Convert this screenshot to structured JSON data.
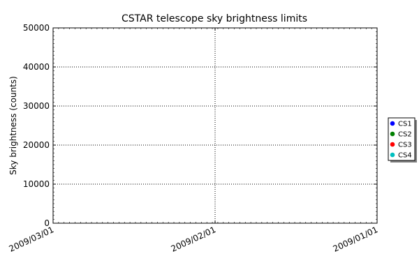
{
  "chart_data": {
    "type": "scatter",
    "title": "CSTAR telescope sky brightness limits",
    "xlabel": "",
    "ylabel": "Sky brightness (counts)",
    "x_ticks": [
      "2009/03/01",
      "2009/02/01",
      "2009/01/01"
    ],
    "y_ticks": [
      0,
      10000,
      20000,
      30000,
      40000,
      50000
    ],
    "ylim": [
      0,
      50000
    ],
    "grid": true,
    "legend_position": "right",
    "series": [
      {
        "name": "CS1",
        "color": "#0000ff",
        "points": []
      },
      {
        "name": "CS2",
        "color": "#008000",
        "points": []
      },
      {
        "name": "CS3",
        "color": "#ff0000",
        "points": []
      },
      {
        "name": "CS4",
        "color": "#00bfbf",
        "points": []
      }
    ]
  }
}
